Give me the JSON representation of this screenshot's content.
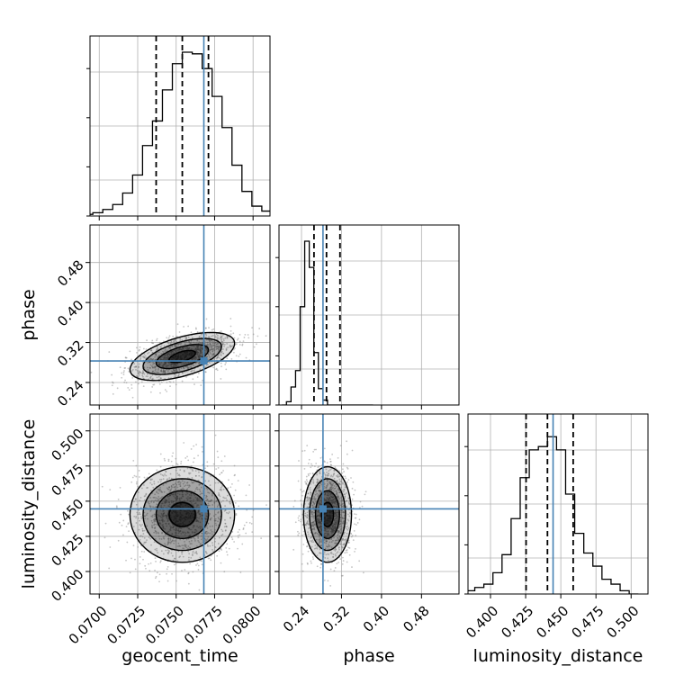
{
  "chart_data": {
    "type": "corner",
    "parameters": [
      "geocent_time",
      "phase",
      "luminosity_distance"
    ],
    "axis_labels": {
      "geocent_time": "geocent_time",
      "phase": "phase",
      "luminosity_distance": "luminosity_distance"
    },
    "ranges": {
      "geocent_time": [
        0.0694,
        0.0811
      ],
      "phase": [
        0.195,
        0.555
      ],
      "luminosity_distance": [
        0.384,
        0.512
      ]
    },
    "ticks": {
      "geocent_time": [
        0.07,
        0.0725,
        0.075,
        0.0775,
        0.08
      ],
      "phase": [
        0.24,
        0.32,
        0.4,
        0.48
      ],
      "luminosity_distance": [
        0.4,
        0.425,
        0.45,
        0.475,
        0.5
      ]
    },
    "tick_labels": {
      "geocent_time": [
        "0.0700",
        "0.0725",
        "0.0750",
        "0.0775",
        "0.0800"
      ],
      "phase": [
        "0.24",
        "0.32",
        "0.40",
        "0.48"
      ],
      "luminosity_distance": [
        "0.400",
        "0.425",
        "0.450",
        "0.475",
        "0.500"
      ]
    },
    "truths": {
      "geocent_time": 0.0768,
      "phase": 0.283,
      "luminosity_distance": 0.4445
    },
    "quantiles": {
      "geocent_time": [
        0.0737,
        0.0754,
        0.0771
      ],
      "phase": [
        0.265,
        0.29,
        0.317
      ],
      "luminosity_distance": [
        0.4253,
        0.4405,
        0.4588
      ]
    },
    "means": {
      "geocent_time": 0.0754,
      "phase": 0.292,
      "luminosity_distance": 0.4405
    },
    "sigmas": {
      "geocent_time": 0.0017,
      "phase": 0.024,
      "luminosity_distance": 0.017
    },
    "correlations": {
      "phase|geocent_time": 0.55,
      "luminosity_distance|geocent_time": 0.0,
      "luminosity_distance|phase": 0.0
    },
    "histograms": {
      "geocent_time": {
        "bins": 20,
        "counts": [
          0.01,
          0.02,
          0.04,
          0.07,
          0.14,
          0.25,
          0.43,
          0.58,
          0.77,
          0.93,
          1.0,
          0.99,
          0.9,
          0.73,
          0.54,
          0.31,
          0.15,
          0.06,
          0.03,
          0.01
        ]
      },
      "phase": {
        "bins": 20,
        "counts": [
          0.0,
          0.02,
          0.11,
          0.21,
          0.6,
          1.0,
          0.84,
          0.32,
          0.1,
          0.03,
          0.0,
          0.0,
          0.0,
          0.0,
          0.0,
          0.0,
          0.0,
          0.0,
          0.0,
          0.0
        ]
      },
      "luminosity_distance": {
        "bins": 20,
        "counts": [
          0.01,
          0.02,
          0.04,
          0.06,
          0.13,
          0.24,
          0.46,
          0.71,
          0.88,
          0.9,
          0.96,
          0.88,
          0.61,
          0.37,
          0.25,
          0.17,
          0.09,
          0.06,
          0.02,
          0.0
        ]
      }
    },
    "grid": true,
    "truth_color": "#4682b4",
    "quantile_color": "#000000",
    "contour_color": "#000000",
    "point_color": "#808080"
  }
}
